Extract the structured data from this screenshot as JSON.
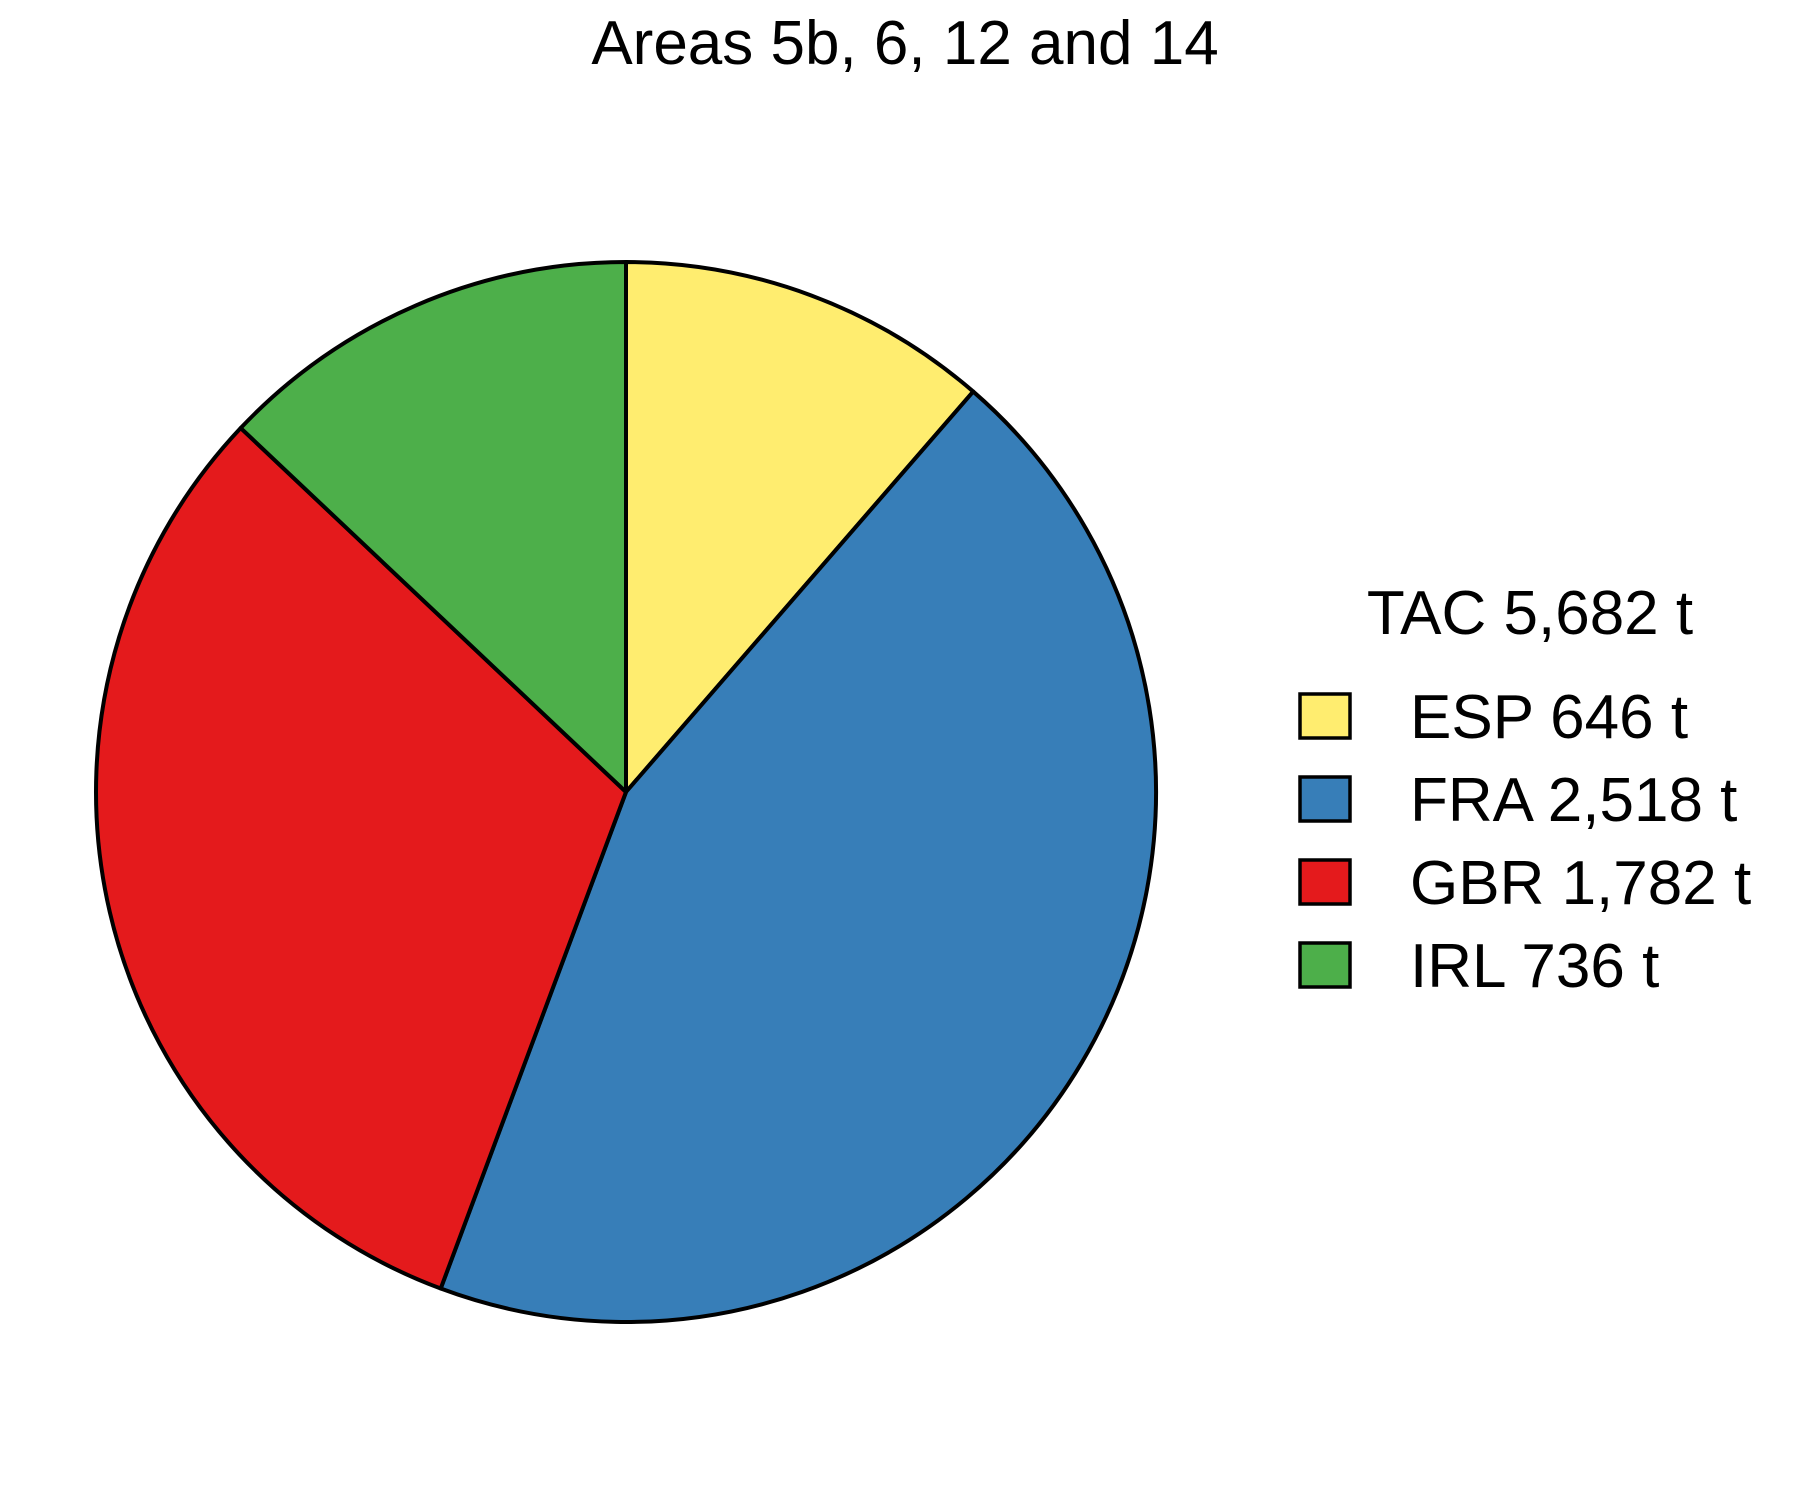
{
  "chart_data": {
    "type": "pie",
    "title": "Areas 5b, 6, 12 and 14",
    "legend": {
      "title": "TAC 5,682 t",
      "placement": "right"
    },
    "slices": [
      {
        "name": "ESP",
        "value": 646,
        "label": "ESP 646 t",
        "color": "#ffed6f"
      },
      {
        "name": "FRA",
        "value": 2518,
        "label": "FRA 2,518 t",
        "color": "#377eb8"
      },
      {
        "name": "GBR",
        "value": 1782,
        "label": "GBR 1,782 t",
        "color": "#e41a1c"
      },
      {
        "name": "IRL",
        "value": 736,
        "label": "IRL 736 t",
        "color": "#4daf4a"
      }
    ]
  }
}
